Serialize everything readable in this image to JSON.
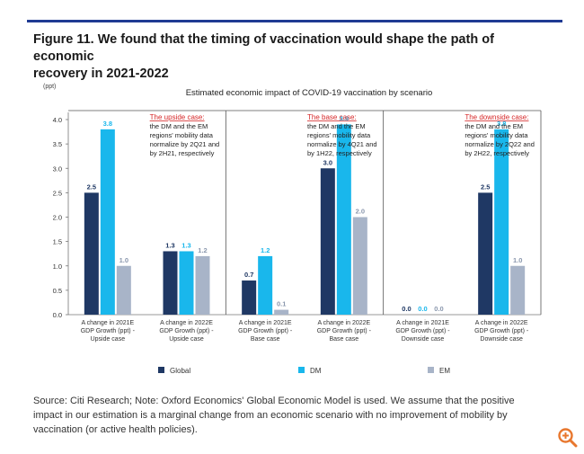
{
  "page": {
    "title_line1": "Figure 11. We found that the timing of vaccination would shape the path of economic",
    "title_line2": "recovery in 2021-2022",
    "source_note": "Source: Citi Research; Note: Oxford Economics' Global Economic Model is used. We assume that the positive impact in our estimation is a marginal change from an economic scenario with no improvement of mobility by vaccination (or active health policies).",
    "zoom_icon": "zoom-in-icon"
  },
  "colors": {
    "global": "#1f3864",
    "dm": "#19b7ec",
    "em": "#a8b4c8",
    "case_heading": "#d62728",
    "accent_line": "#1f3a93",
    "zoom": "#e8772e"
  },
  "chart_data": {
    "type": "bar",
    "title": "Estimated economic impact of COVID-19 vaccination by scenario",
    "ylabel": "(ppt)",
    "ylim": [
      0,
      4.0
    ],
    "yticks": [
      "0.0",
      "0.5",
      "1.0",
      "1.5",
      "2.0",
      "2.5",
      "3.0",
      "3.5",
      "4.0"
    ],
    "categories": [
      [
        "A change in 2021E",
        "GDP Growth (ppt) -",
        "Upside case"
      ],
      [
        "A change in 2022E",
        "GDP Growth (ppt) -",
        "Upside case"
      ],
      [
        "A change in 2021E",
        "GDP Growth (ppt) -",
        "Base case"
      ],
      [
        "A change in 2022E",
        "GDP Growth (ppt) -",
        "Base case"
      ],
      [
        "A change in 2021E",
        "GDP Growth (ppt) -",
        "Downside case"
      ],
      [
        "A change in 2022E",
        "GDP Growth (ppt) -",
        "Downside case"
      ]
    ],
    "series": [
      {
        "name": "Global",
        "values": [
          2.5,
          1.3,
          0.7,
          3.0,
          0.0,
          2.5
        ],
        "labels": [
          "2.5",
          "1.3",
          "0.7",
          "3.0",
          "0.0",
          "2.5"
        ]
      },
      {
        "name": "DM",
        "values": [
          3.8,
          1.3,
          1.2,
          3.9,
          0.0,
          3.8
        ],
        "labels": [
          "3.8",
          "1.3",
          "1.2",
          "3.9",
          "0.0",
          "3.8"
        ]
      },
      {
        "name": "EM",
        "values": [
          1.0,
          1.2,
          0.1,
          2.0,
          0.0,
          1.0
        ],
        "labels": [
          "1.0",
          "1.2",
          "0.1",
          "2.0",
          "0.0",
          "1.0"
        ]
      }
    ],
    "annotations": [
      {
        "heading": "The upside case",
        "lines": [
          "the DM and the EM",
          "regions' mobility data",
          "normalize by 2Q21 and",
          "by 2H21, respectively"
        ]
      },
      {
        "heading": "The base case",
        "lines": [
          "the DM and the EM",
          "regions' mobility data",
          "normalize by 4Q21 and",
          "by 1H22, respectively"
        ]
      },
      {
        "heading": "The downside case",
        "lines": [
          "the DM and the EM",
          "regions' mobility data",
          "normalize by 2Q22 and",
          "by 2H22, respectively"
        ]
      }
    ],
    "legend": [
      "Global",
      "DM",
      "EM"
    ],
    "legend_position": "bottom"
  }
}
